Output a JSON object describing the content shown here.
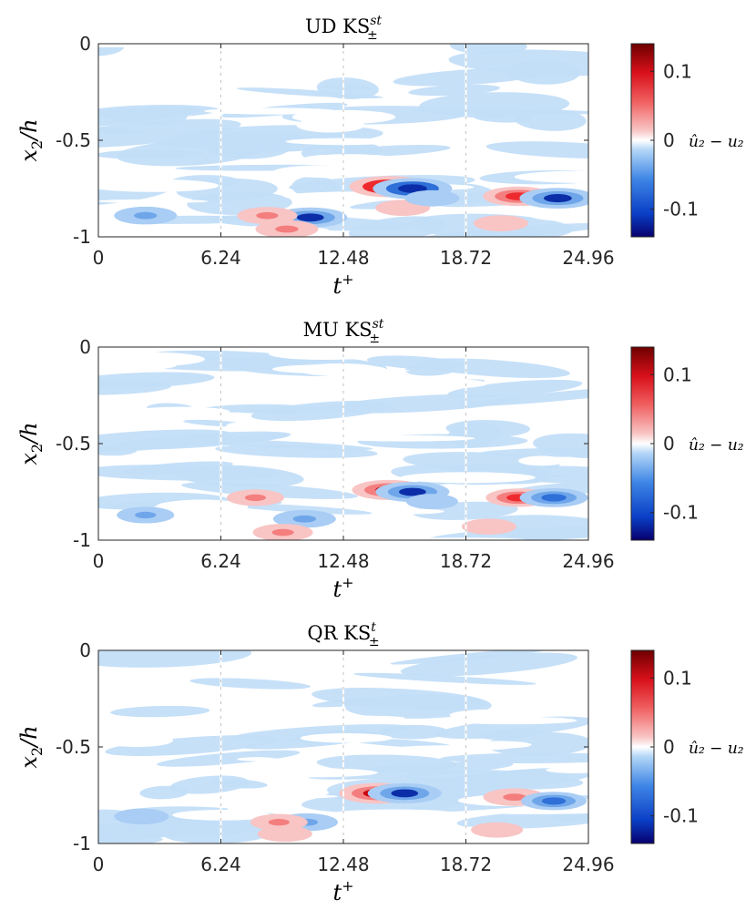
{
  "chart_data": [
    {
      "type": "heatmap",
      "title": "UD KS",
      "title_sup": "st",
      "title_sub": "±",
      "xlabel": "t",
      "xlabel_sup": "+",
      "ylabel": "x",
      "ylabel_sub": "2",
      "ylabel_tail": "/h",
      "xlim": [
        0,
        24.96
      ],
      "ylim": [
        -1,
        0
      ],
      "xticks": [
        "0",
        "6.24",
        "12.48",
        "18.72",
        "24.96"
      ],
      "yticks": [
        "0",
        "-0.5",
        "-1"
      ],
      "colorbar": {
        "label": "û₂ − u₂",
        "ticks": [
          "0.1",
          "0",
          "-0.1"
        ],
        "range": [
          -0.14,
          0.14
        ]
      },
      "features": [
        {
          "t": 14.8,
          "x2": -0.74,
          "value": 0.13
        },
        {
          "t": 16.0,
          "x2": -0.75,
          "value": -0.13
        },
        {
          "t": 21.4,
          "x2": -0.79,
          "value": 0.1
        },
        {
          "t": 23.4,
          "x2": -0.8,
          "value": -0.12
        },
        {
          "t": 10.8,
          "x2": -0.9,
          "value": -0.11
        },
        {
          "t": 9.6,
          "x2": -0.96,
          "value": 0.07
        },
        {
          "t": 8.6,
          "x2": -0.89,
          "value": 0.06
        },
        {
          "t": 2.4,
          "x2": -0.89,
          "value": -0.07
        },
        {
          "t": 15.5,
          "x2": -0.85,
          "value": 0.04
        },
        {
          "t": 20.5,
          "x2": -0.93,
          "value": 0.04
        },
        {
          "t": 17.0,
          "x2": -0.8,
          "value": -0.04
        }
      ]
    },
    {
      "type": "heatmap",
      "title": "MU KS",
      "title_sup": "st",
      "title_sub": "±",
      "xlabel": "t",
      "xlabel_sup": "+",
      "ylabel": "x",
      "ylabel_sub": "2",
      "ylabel_tail": "/h",
      "xlim": [
        0,
        24.96
      ],
      "ylim": [
        -1,
        0
      ],
      "xticks": [
        "0",
        "6.24",
        "12.48",
        "18.72",
        "24.96"
      ],
      "yticks": [
        "0",
        "-0.5",
        "-1"
      ],
      "colorbar": {
        "label": "û₂ − u₂",
        "ticks": [
          "0.1",
          "0",
          "-0.1"
        ],
        "range": [
          -0.14,
          0.14
        ]
      },
      "features": [
        {
          "t": 14.8,
          "x2": -0.74,
          "value": 0.11
        },
        {
          "t": 16.0,
          "x2": -0.75,
          "value": -0.11
        },
        {
          "t": 21.4,
          "x2": -0.78,
          "value": 0.08
        },
        {
          "t": 23.2,
          "x2": -0.78,
          "value": -0.09
        },
        {
          "t": 10.5,
          "x2": -0.89,
          "value": -0.07
        },
        {
          "t": 9.4,
          "x2": -0.96,
          "value": 0.06
        },
        {
          "t": 8.0,
          "x2": -0.78,
          "value": 0.05
        },
        {
          "t": 2.4,
          "x2": -0.87,
          "value": -0.05
        },
        {
          "t": 19.9,
          "x2": -0.93,
          "value": 0.04
        },
        {
          "t": 17.0,
          "x2": -0.8,
          "value": -0.03
        }
      ]
    },
    {
      "type": "heatmap",
      "title": "QR KS",
      "title_sup": "t",
      "title_sub": "±",
      "xlabel": "t",
      "xlabel_sup": "+",
      "ylabel": "x",
      "ylabel_sub": "2",
      "ylabel_tail": "/h",
      "xlim": [
        0,
        24.96
      ],
      "ylim": [
        -1,
        0
      ],
      "xticks": [
        "0",
        "6.24",
        "12.48",
        "18.72",
        "24.96"
      ],
      "yticks": [
        "0",
        "-0.5",
        "-1"
      ],
      "colorbar": {
        "label": "û₂ − u₂",
        "ticks": [
          "0.1",
          "0",
          "-0.1"
        ],
        "range": [
          -0.14,
          0.14
        ]
      },
      "features": [
        {
          "t": 14.2,
          "x2": -0.74,
          "value": 0.12
        },
        {
          "t": 15.6,
          "x2": -0.74,
          "value": -0.11
        },
        {
          "t": 21.2,
          "x2": -0.76,
          "value": 0.07
        },
        {
          "t": 23.2,
          "x2": -0.78,
          "value": -0.08
        },
        {
          "t": 10.6,
          "x2": -0.89,
          "value": -0.07
        },
        {
          "t": 9.2,
          "x2": -0.89,
          "value": 0.05
        },
        {
          "t": 9.5,
          "x2": -0.95,
          "value": 0.04
        },
        {
          "t": 2.2,
          "x2": -0.86,
          "value": -0.04
        },
        {
          "t": 20.3,
          "x2": -0.93,
          "value": 0.03
        }
      ]
    }
  ]
}
